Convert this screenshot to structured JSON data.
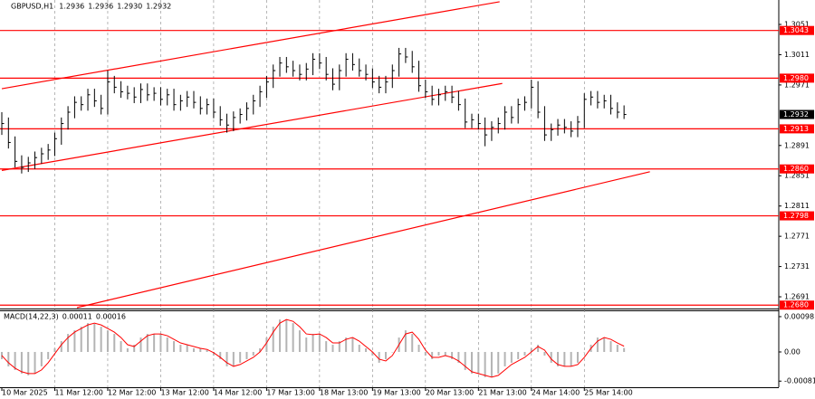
{
  "chart_data": [
    {
      "type": "ohlc",
      "title": "GBPUSD,H1",
      "quote": [
        1.2936,
        1.2936,
        {
          "value": 1.293,
          "label": "1.2930"
        },
        1.2932
      ],
      "categories": [
        "10 Mar 2025",
        null,
        null,
        null,
        null,
        null,
        null,
        null,
        "11 Mar 12:00",
        null,
        null,
        null,
        null,
        null,
        null,
        null,
        "12 Mar 12:00",
        null,
        null,
        null,
        null,
        null,
        null,
        null,
        "13 Mar 12:00",
        null,
        null,
        null,
        null,
        null,
        null,
        null,
        "14 Mar 12:00",
        null,
        null,
        null,
        null,
        null,
        null,
        null,
        "17 Mar 13:00",
        null,
        null,
        null,
        null,
        null,
        null,
        null,
        "18 Mar 13:00",
        null,
        null,
        null,
        null,
        null,
        null,
        null,
        "19 Mar 13:00",
        null,
        null,
        null,
        null,
        null,
        null,
        null,
        "20 Mar 13:00",
        null,
        null,
        null,
        null,
        null,
        null,
        null,
        "21 Mar 13:00",
        null,
        null,
        null,
        null,
        null,
        null,
        null,
        "24 Mar 14:00",
        null,
        null,
        null,
        null,
        null,
        null,
        null,
        "25 Mar 14:00",
        null,
        null,
        null,
        null,
        null,
        null
      ],
      "high": [
        1.2935,
        1.2928,
        1.2903,
        1.2878,
        1.2876,
        1.2883,
        1.2888,
        1.2893,
        1.2908,
        1.2928,
        1.2943,
        1.2956,
        1.2956,
        1.2966,
        1.2966,
        1.2958,
        1.299,
        1.2983,
        1.2976,
        1.297,
        1.2968,
        1.2973,
        1.2973,
        1.2968,
        1.2968,
        1.2966,
        1.2966,
        1.2958,
        1.2963,
        1.2963,
        1.2956,
        1.2953,
        1.2953,
        1.2943,
        1.2933,
        1.2936,
        1.294,
        1.2948,
        1.2958,
        1.297,
        1.2983,
        1.2998,
        1.3008,
        1.3008,
        1.3003,
        1.2998,
        1.3,
        1.3013,
        1.3013,
        1.3008,
        1.2993,
        1.2998,
        1.3013,
        1.3013,
        1.3006,
        1.2998,
        1.2993,
        1.2983,
        1.2983,
        1.2998,
        1.302,
        1.302,
        1.3016,
        1.3003,
        1.2978,
        1.297,
        1.2966,
        1.297,
        1.297,
        1.2963,
        1.2953,
        1.2933,
        1.2933,
        1.2928,
        1.2923,
        1.2928,
        1.2943,
        1.2943,
        1.2953,
        1.2956,
        1.2978,
        1.2976,
        1.2943,
        1.292,
        1.2926,
        1.2926,
        1.2923,
        1.293,
        1.296,
        1.2963,
        1.2963,
        1.2958,
        1.2958,
        1.2948,
        1.2944
      ],
      "low": [
        1.2905,
        1.2887,
        1.2862,
        1.2854,
        1.2856,
        1.286,
        1.2867,
        1.2872,
        1.2877,
        1.2892,
        1.2912,
        1.2927,
        1.2937,
        1.2937,
        1.2942,
        1.2932,
        1.2932,
        1.296,
        1.2954,
        1.2952,
        1.2947,
        1.2947,
        1.295,
        1.295,
        1.2944,
        1.2944,
        1.2937,
        1.2937,
        1.2942,
        1.294,
        1.2932,
        1.2932,
        1.2927,
        1.2917,
        1.2908,
        1.291,
        1.292,
        1.2924,
        1.2932,
        1.2942,
        1.2954,
        1.2967,
        1.2982,
        1.2987,
        1.2982,
        1.2977,
        1.2977,
        1.2984,
        1.2992,
        1.2977,
        1.2964,
        1.2964,
        1.2982,
        1.299,
        1.2982,
        1.2977,
        1.2967,
        1.296,
        1.296,
        1.2967,
        1.2982,
        1.3,
        1.2987,
        1.2962,
        1.2954,
        1.2944,
        1.2944,
        1.295,
        1.2947,
        1.2937,
        1.2914,
        1.2914,
        1.2912,
        1.289,
        1.2897,
        1.2907,
        1.2912,
        1.292,
        1.292,
        1.2937,
        1.294,
        1.2927,
        1.2897,
        1.2897,
        1.2904,
        1.2907,
        1.2902,
        1.2902,
        1.2914,
        1.2944,
        1.294,
        1.294,
        1.2932,
        1.2927,
        1.2926
      ],
      "close": [
        1.292,
        1.2895,
        1.287,
        1.2862,
        1.2868,
        1.2875,
        1.288,
        1.2885,
        1.29,
        1.292,
        1.2935,
        1.2948,
        1.2945,
        1.2958,
        1.295,
        1.294,
        1.2975,
        1.2968,
        1.2962,
        1.296,
        1.2955,
        1.2965,
        1.2958,
        1.296,
        1.2952,
        1.2958,
        1.2945,
        1.295,
        1.2955,
        1.2948,
        1.294,
        1.2945,
        1.2935,
        1.2925,
        1.2918,
        1.2928,
        1.2932,
        1.294,
        1.295,
        1.2962,
        1.2975,
        1.299,
        1.3,
        1.2995,
        1.299,
        1.2985,
        1.2992,
        1.3005,
        1.3,
        1.2985,
        1.2972,
        1.299,
        1.3005,
        1.2998,
        1.299,
        1.2985,
        1.2975,
        1.2968,
        1.2975,
        1.299,
        1.3012,
        1.3008,
        1.2995,
        1.297,
        1.2962,
        1.2952,
        1.2958,
        1.2962,
        1.2955,
        1.2945,
        1.2922,
        1.2925,
        1.292,
        1.2905,
        1.2915,
        1.292,
        1.2935,
        1.2928,
        1.2945,
        1.2948,
        1.2968,
        1.2935,
        1.2905,
        1.2912,
        1.2918,
        1.2915,
        1.291,
        1.2922,
        1.2952,
        1.2955,
        1.2948,
        1.295,
        1.294,
        1.2935,
        1.2932
      ],
      "color": "#000000",
      "ylim": [
        1.26755,
        1.30833
      ],
      "yticks": [
        1.3051,
        1.3011,
        1.2971,
        1.2891,
        1.2851,
        1.2811,
        1.2771,
        1.2731,
        1.2691
      ],
      "current_price": 1.2932,
      "levels": [
        {
          "value": 1.3043,
          "label": "1.3043"
        },
        {
          "value": 1.298,
          "label": "1.2980"
        },
        {
          "value": 1.2913,
          "label": "1.2913"
        },
        {
          "value": 1.286,
          "label": "1.2860"
        },
        {
          "value": 1.2798,
          "label": "1.2798"
        },
        {
          "value": 1.268,
          "label": "1.2680"
        }
      ],
      "level_color": "#ff0000",
      "channel_lines": [
        {
          "x": [
            0,
            75.2
          ],
          "y": [
            1.2966,
            1.3081
          ]
        },
        {
          "x": [
            0,
            75.6
          ],
          "y": [
            1.2858,
            1.2973
          ]
        },
        {
          "x": [
            11.35,
            97.9
          ],
          "y": [
            1.26767,
            1.28563
          ]
        }
      ],
      "grid": true
    },
    {
      "type": "macd",
      "title": "MACD(14,22,3)",
      "quote": [
        0.00011,
        0.00016
      ],
      "macd": [
        -0.0002,
        -0.0004,
        -0.0005,
        -0.0006,
        -0.00065,
        -0.0006,
        -0.0004,
        -0.0002,
        0.0001,
        0.0003,
        0.0005,
        0.0006,
        0.0007,
        0.0008,
        0.00078,
        0.0007,
        0.0006,
        0.0005,
        0.0003,
        0.0001,
        0.0002,
        0.0004,
        0.0005,
        0.0005,
        0.0005,
        0.0004,
        0.0003,
        0.0002,
        0.0002,
        0.0001,
        0.0001,
        5e-05,
        -0.0001,
        -0.0002,
        -0.0004,
        -0.0004,
        -0.0003,
        -0.0002,
        -0.0001,
        0.0001,
        0.0004,
        0.0007,
        0.0009,
        0.0009,
        0.0008,
        0.0006,
        0.0004,
        0.0005,
        0.0005,
        0.0003,
        0.0002,
        0.0003,
        0.0004,
        0.0004,
        0.0002,
        0.0001,
        -0.0001,
        -0.0003,
        -0.0002,
        0,
        0.0004,
        0.0006,
        0.0005,
        0.0002,
        -0.0001,
        -0.0002,
        -0.0001,
        -0.0001,
        -0.0002,
        -0.0003,
        -0.0005,
        -0.0006,
        -0.0006,
        -0.0007,
        -0.0007,
        -0.0006,
        -0.0004,
        -0.0003,
        -0.0002,
        -0.0001,
        0.0001,
        0.0002,
        -0.0001,
        -0.0003,
        -0.0004,
        -0.0004,
        -0.0004,
        -0.0003,
        0,
        0.0002,
        0.0004,
        0.0004,
        0.0003,
        0.0002,
        0.00011
      ],
      "signal": [
        -0.0001,
        -0.0003,
        -0.00045,
        -0.00055,
        -0.0006,
        -0.0006,
        -0.0005,
        -0.0003,
        -5e-05,
        0.0002,
        0.0004,
        0.00055,
        0.00065,
        0.00075,
        0.0008,
        0.00075,
        0.00065,
        0.00055,
        0.0004,
        0.0002,
        0.00015,
        0.0003,
        0.00045,
        0.0005,
        0.0005,
        0.00045,
        0.00035,
        0.00025,
        0.0002,
        0.00015,
        0.0001,
        7e-05,
        -2e-05,
        -0.00015,
        -0.0003,
        -0.0004,
        -0.00035,
        -0.00025,
        -0.00015,
        0,
        0.00025,
        0.00055,
        0.0008,
        0.0009,
        0.00085,
        0.0007,
        0.0005,
        0.00048,
        0.0005,
        0.0004,
        0.00025,
        0.00025,
        0.00035,
        0.0004,
        0.0003,
        0.00015,
        0,
        -0.0002,
        -0.00025,
        -0.0001,
        0.0002,
        0.0005,
        0.00055,
        0.00035,
        5e-05,
        -0.00015,
        -0.00015,
        -0.0001,
        -0.00015,
        -0.00025,
        -0.0004,
        -0.00055,
        -0.0006,
        -0.00065,
        -0.0007,
        -0.00065,
        -0.0005,
        -0.00035,
        -0.00025,
        -0.00015,
        0,
        0.00015,
        5e-05,
        -0.0002,
        -0.00035,
        -0.0004,
        -0.0004,
        -0.00035,
        -0.00015,
        0.0001,
        0.0003,
        0.0004,
        0.00035,
        0.00025,
        0.00016
      ],
      "hist_color": "#b4b4b4",
      "signal_color": "#ff0000",
      "ylim": [
        -0.00098,
        0.00113
      ],
      "yticks": [
        0.00098,
        {
          "value": 0,
          "label": "0.00"
        },
        -0.00081
      ]
    }
  ]
}
